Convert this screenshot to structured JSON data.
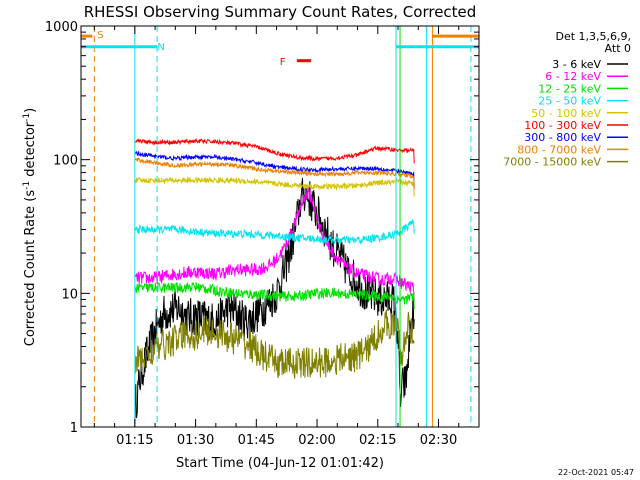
{
  "chart_data": {
    "type": "line",
    "title": "RHESSI Observing Summary Count Rates, Corrected",
    "xlabel": "Start Time (04-Jun-12 01:01:42)",
    "ylabel_main": "Corrected Count Rate (s",
    "ylabel_sup1": "-1",
    "ylabel_mid": " detector",
    "ylabel_sup2": "-1",
    "ylabel_end": ")",
    "xlim": [
      61.7,
      160
    ],
    "ylim": [
      1,
      1000
    ],
    "yscale": "log",
    "x_ticks": [
      {
        "value": 75,
        "label": "01:15"
      },
      {
        "value": 90,
        "label": "01:30"
      },
      {
        "value": 105,
        "label": "01:45"
      },
      {
        "value": 120,
        "label": "02:00"
      },
      {
        "value": 135,
        "label": "02:15"
      },
      {
        "value": 150,
        "label": "02:30"
      }
    ],
    "y_ticks": [
      {
        "value": 1,
        "label": "1"
      },
      {
        "value": 10,
        "label": "10"
      },
      {
        "value": 100,
        "label": "100"
      },
      {
        "value": 1000,
        "label": "1000"
      }
    ],
    "legend": {
      "title_line1": "Det 1,3,5,6,9,",
      "title_line2": "Att 0",
      "entries": [
        {
          "label": "3 - 6 keV",
          "color": "#000000"
        },
        {
          "label": "6 - 12 keV",
          "color": "#ff00ff"
        },
        {
          "label": "12 - 25 keV",
          "color": "#00e000"
        },
        {
          "label": "25 - 50 keV",
          "color": "#00e5ee"
        },
        {
          "label": "50 - 100 keV",
          "color": "#d4c400"
        },
        {
          "label": "100 - 300 keV",
          "color": "#ff0000"
        },
        {
          "label": "300 - 800 keV",
          "color": "#0000ff"
        },
        {
          "label": "800 - 7000 keV",
          "color": "#f08000"
        },
        {
          "label": "7000 - 15000 keV",
          "color": "#808000"
        }
      ]
    },
    "series": [
      {
        "name": "3 - 6 keV",
        "color": "#000000",
        "noise": 0.15,
        "points": [
          [
            75,
            1.4
          ],
          [
            76.5,
            2.5
          ],
          [
            78,
            3.5
          ],
          [
            80,
            5.2
          ],
          [
            82,
            7
          ],
          [
            84,
            7.5
          ],
          [
            86,
            7.8
          ],
          [
            88,
            6.5
          ],
          [
            90,
            6.8
          ],
          [
            92,
            6.5
          ],
          [
            94,
            6.2
          ],
          [
            96,
            6.5
          ],
          [
            98,
            7.8
          ],
          [
            100,
            7.2
          ],
          [
            102,
            6.2
          ],
          [
            104,
            6.5
          ],
          [
            106,
            7.5
          ],
          [
            108,
            8.5
          ],
          [
            110,
            10
          ],
          [
            112,
            15
          ],
          [
            114,
            25
          ],
          [
            115,
            35
          ],
          [
            116,
            50
          ],
          [
            117,
            57
          ],
          [
            118,
            52
          ],
          [
            119,
            45
          ],
          [
            120,
            40
          ],
          [
            122,
            30
          ],
          [
            124,
            22
          ],
          [
            126,
            18
          ],
          [
            128,
            14
          ],
          [
            130,
            12
          ],
          [
            132,
            10
          ],
          [
            134,
            9.5
          ],
          [
            136,
            9
          ],
          [
            138,
            9
          ],
          [
            139,
            8.5
          ],
          [
            140,
            5
          ],
          [
            140.5,
            1.5
          ],
          [
            141,
            2
          ],
          [
            142,
            2.2
          ],
          [
            143,
            5
          ],
          [
            144,
            8
          ]
        ]
      },
      {
        "name": "6 - 12 keV",
        "color": "#ff00ff",
        "noise": 0.05,
        "points": [
          [
            75,
            13
          ],
          [
            80,
            13
          ],
          [
            85,
            14
          ],
          [
            90,
            14.5
          ],
          [
            95,
            14
          ],
          [
            100,
            15
          ],
          [
            105,
            15
          ],
          [
            108,
            16
          ],
          [
            110,
            18
          ],
          [
            112,
            22
          ],
          [
            114,
            30
          ],
          [
            116,
            45
          ],
          [
            117,
            55
          ],
          [
            118,
            56
          ],
          [
            119,
            48
          ],
          [
            120,
            35
          ],
          [
            122,
            25
          ],
          [
            124,
            20
          ],
          [
            126,
            17
          ],
          [
            128,
            15
          ],
          [
            130,
            14
          ],
          [
            132,
            13.5
          ],
          [
            134,
            13
          ],
          [
            136,
            12.5
          ],
          [
            138,
            13
          ],
          [
            140,
            12.5
          ],
          [
            142,
            11.5
          ],
          [
            144,
            11
          ]
        ]
      },
      {
        "name": "12 - 25 keV",
        "color": "#00e000",
        "noise": 0.04,
        "points": [
          [
            75,
            11
          ],
          [
            80,
            11
          ],
          [
            85,
            11
          ],
          [
            90,
            11.2
          ],
          [
            95,
            10.5
          ],
          [
            100,
            10
          ],
          [
            105,
            9.8
          ],
          [
            110,
            9.5
          ],
          [
            115,
            9.5
          ],
          [
            120,
            10
          ],
          [
            125,
            10
          ],
          [
            130,
            9.8
          ],
          [
            135,
            9.5
          ],
          [
            138,
            9.5
          ],
          [
            140,
            9
          ],
          [
            142,
            9
          ],
          [
            144,
            9.5
          ]
        ]
      },
      {
        "name": "25 - 50 keV",
        "color": "#00e5ee",
        "noise": 0.03,
        "points": [
          [
            75,
            30
          ],
          [
            80,
            30
          ],
          [
            85,
            30
          ],
          [
            90,
            29
          ],
          [
            95,
            28
          ],
          [
            100,
            28
          ],
          [
            105,
            27.5
          ],
          [
            110,
            27
          ],
          [
            115,
            26
          ],
          [
            120,
            25.5
          ],
          [
            125,
            25
          ],
          [
            130,
            25
          ],
          [
            135,
            26
          ],
          [
            140,
            28
          ],
          [
            142,
            31
          ],
          [
            144,
            35
          ]
        ]
      },
      {
        "name": "50 - 100 keV",
        "color": "#d4c400",
        "noise": 0.02,
        "points": [
          [
            75,
            70
          ],
          [
            80,
            70
          ],
          [
            85,
            70
          ],
          [
            90,
            70
          ],
          [
            95,
            70
          ],
          [
            100,
            70
          ],
          [
            105,
            68
          ],
          [
            110,
            66
          ],
          [
            115,
            64
          ],
          [
            120,
            63
          ],
          [
            125,
            63
          ],
          [
            130,
            64
          ],
          [
            135,
            67
          ],
          [
            140,
            68
          ],
          [
            144,
            66
          ]
        ]
      },
      {
        "name": "100 - 300 keV",
        "color": "#ff0000",
        "noise": 0.015,
        "points": [
          [
            75,
            140
          ],
          [
            80,
            135
          ],
          [
            85,
            135
          ],
          [
            90,
            138
          ],
          [
            95,
            136
          ],
          [
            100,
            132
          ],
          [
            105,
            125
          ],
          [
            110,
            112
          ],
          [
            115,
            104
          ],
          [
            120,
            101
          ],
          [
            125,
            103
          ],
          [
            130,
            108
          ],
          [
            133,
            118
          ],
          [
            135,
            122
          ],
          [
            138,
            120
          ],
          [
            140,
            118
          ],
          [
            144,
            117
          ]
        ]
      },
      {
        "name": "300 - 800 keV",
        "color": "#0000ff",
        "noise": 0.015,
        "points": [
          [
            75,
            112
          ],
          [
            80,
            106
          ],
          [
            85,
            102
          ],
          [
            90,
            105
          ],
          [
            95,
            104
          ],
          [
            100,
            100
          ],
          [
            105,
            95
          ],
          [
            110,
            88
          ],
          [
            115,
            85
          ],
          [
            120,
            84
          ],
          [
            125,
            85
          ],
          [
            130,
            86
          ],
          [
            135,
            86
          ],
          [
            140,
            82
          ],
          [
            144,
            78
          ]
        ]
      },
      {
        "name": "800 - 7000 keV",
        "color": "#f08000",
        "noise": 0.015,
        "points": [
          [
            75,
            100
          ],
          [
            80,
            95
          ],
          [
            85,
            90
          ],
          [
            90,
            92
          ],
          [
            95,
            93
          ],
          [
            100,
            90
          ],
          [
            105,
            85
          ],
          [
            110,
            82
          ],
          [
            115,
            80
          ],
          [
            120,
            78
          ],
          [
            125,
            78
          ],
          [
            130,
            80
          ],
          [
            135,
            80
          ],
          [
            140,
            78
          ],
          [
            144,
            75
          ]
        ]
      },
      {
        "name": "7000 - 15000 keV",
        "color": "#808000",
        "noise": 0.12,
        "points": [
          [
            75,
            3
          ],
          [
            80,
            3.8
          ],
          [
            85,
            4.5
          ],
          [
            88,
            5
          ],
          [
            90,
            4.8
          ],
          [
            92,
            5.3
          ],
          [
            96,
            5
          ],
          [
            100,
            4.5
          ],
          [
            104,
            4
          ],
          [
            106,
            3.5
          ],
          [
            110,
            3
          ],
          [
            115,
            3
          ],
          [
            120,
            3
          ],
          [
            125,
            3.2
          ],
          [
            130,
            3.4
          ],
          [
            133,
            4
          ],
          [
            136,
            5.5
          ],
          [
            138,
            6
          ],
          [
            140,
            5.5
          ],
          [
            141,
            3
          ],
          [
            142,
            5.5
          ],
          [
            144,
            5.5
          ]
        ]
      }
    ],
    "attenuator_markers": [
      {
        "x": 75,
        "color": "#00e5ee",
        "style": "solid"
      },
      {
        "x": 80.5,
        "color": "#00e5ee",
        "style": "dashed"
      },
      {
        "x": 147,
        "color": "#00e5ee",
        "style": "solid"
      },
      {
        "x": 65,
        "color": "#f08000",
        "style": "dashed"
      },
      {
        "x": 148.5,
        "color": "#f08000",
        "style": "solid"
      },
      {
        "x": 139.5,
        "color": "#00e5ee",
        "style": "solid"
      },
      {
        "x": 140.5,
        "color": "#00e000",
        "style": "solid"
      },
      {
        "x": 158,
        "color": "#00e5ee",
        "style": "dashed"
      }
    ],
    "annotations": [
      {
        "label": "S",
        "color": "#f08000",
        "x": 66.5,
        "y": 870
      },
      {
        "label": "N",
        "color": "#00e5ee",
        "x": 81.5,
        "y": 710
      },
      {
        "label": "F",
        "color": "#ff0000",
        "x": 111.5,
        "y": 545
      }
    ],
    "state_bars": [
      {
        "color": "#00e5ee",
        "y": 700,
        "from": 61.7,
        "to": 80.5,
        "width_class": "thick"
      },
      {
        "color": "#00e5ee",
        "y": 700,
        "from": 139.5,
        "to": 160,
        "width_class": "thick"
      },
      {
        "color": "#f08000",
        "y": 840,
        "from": 61.7,
        "to": 64.5,
        "width_class": "thick"
      },
      {
        "color": "#f08000",
        "y": 840,
        "from": 148.5,
        "to": 160,
        "width_class": "thick"
      },
      {
        "color": "#ff0000",
        "y": 550,
        "from": 115,
        "to": 118.5,
        "width_class": "thick"
      }
    ],
    "footer_timestamp": "22-Oct-2021 05:47"
  }
}
